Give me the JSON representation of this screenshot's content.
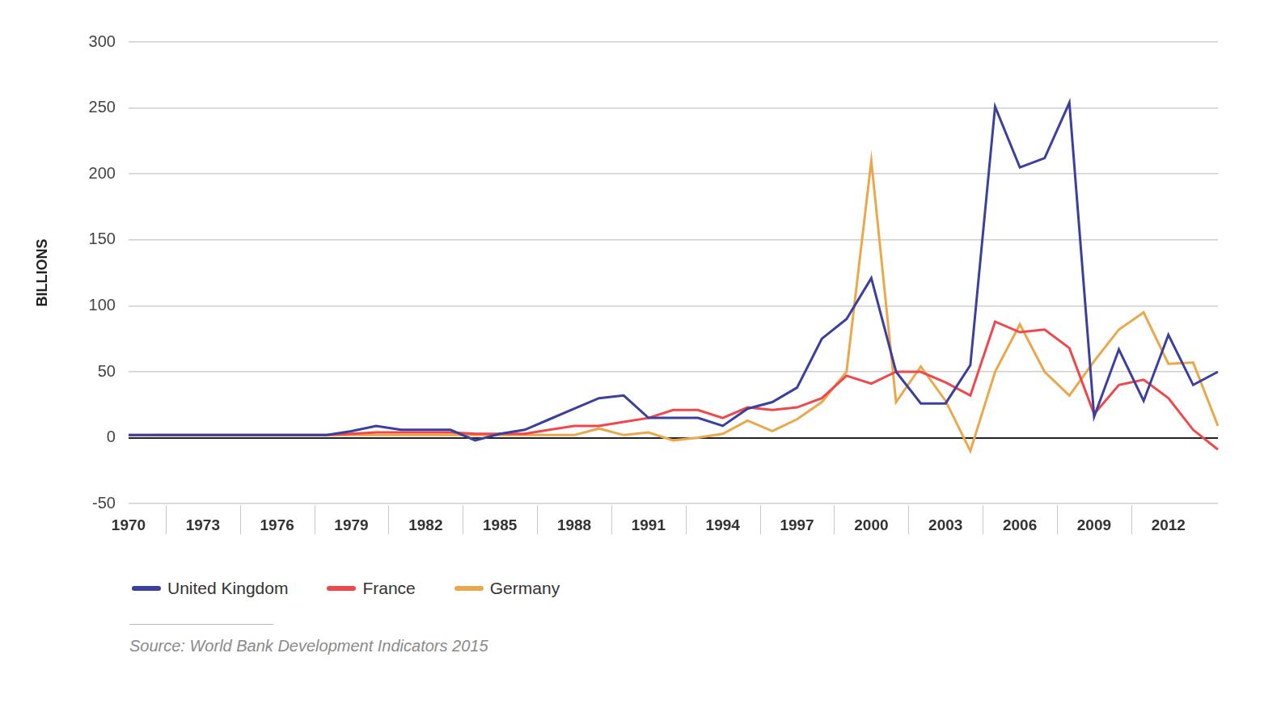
{
  "chart_data": {
    "type": "line",
    "y_label": "BILLIONS",
    "source": "Source: World Bank Development Indicators 2015",
    "categories": [
      "1970",
      null,
      null,
      "1973",
      null,
      null,
      "1976",
      null,
      null,
      "1979",
      null,
      null,
      "1982",
      null,
      null,
      "1985",
      null,
      null,
      "1988",
      null,
      null,
      "1991",
      null,
      null,
      "1994",
      null,
      null,
      "1997",
      null,
      null,
      "2000",
      null,
      null,
      "2003",
      null,
      null,
      "2006",
      null,
      null,
      "2009",
      null,
      null,
      "2012",
      null,
      null
    ],
    "series": [
      {
        "name": "United Kingdom",
        "color": "#3b3f9e",
        "values": [
          2,
          2,
          2,
          2,
          2,
          2,
          2,
          2,
          2,
          5,
          9,
          6,
          6,
          6,
          -2,
          3,
          6,
          14,
          22,
          30,
          32,
          15,
          15,
          15,
          9,
          22,
          27,
          38,
          75,
          90,
          121,
          50,
          26,
          26,
          55,
          251,
          205,
          212,
          254,
          16,
          67,
          28,
          78,
          40,
          50
        ]
      },
      {
        "name": "France",
        "color": "#f0474c",
        "values": [
          2,
          2,
          2,
          2,
          2,
          2,
          2,
          2,
          2,
          3,
          4,
          4,
          4,
          4,
          3,
          3,
          3,
          6,
          9,
          9,
          12,
          15,
          21,
          21,
          15,
          23,
          21,
          23,
          30,
          47,
          41,
          50,
          50,
          42,
          32,
          88,
          80,
          82,
          68,
          18,
          40,
          44,
          30,
          6,
          -9
        ]
      },
      {
        "name": "Germany",
        "color": "#eba84a",
        "values": [
          null,
          2,
          2,
          2,
          2,
          2,
          2,
          2,
          2,
          2,
          2,
          2,
          2,
          2,
          2,
          2,
          2,
          2,
          2,
          7,
          2,
          4,
          -2,
          0,
          3,
          13,
          5,
          14,
          27,
          50,
          210,
          27,
          54,
          28,
          -10,
          50,
          86,
          50,
          32,
          58,
          82,
          95,
          56,
          57,
          9
        ]
      }
    ],
    "ylim": [
      -50,
      300
    ],
    "yticks": [
      -50,
      0,
      50,
      100,
      150,
      200,
      250,
      300
    ],
    "grid": true,
    "legend": "bottom"
  }
}
